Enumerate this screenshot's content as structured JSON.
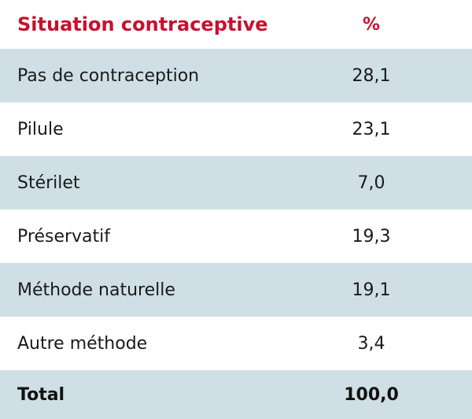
{
  "table": {
    "header": {
      "label": "Situation contraceptive",
      "value": "%"
    },
    "rows": [
      {
        "label": "Pas de contraception",
        "value": "28,1"
      },
      {
        "label": "Pilule",
        "value": "23,1"
      },
      {
        "label": "Stérilet",
        "value": "7,0"
      },
      {
        "label": "Préservatif",
        "value": "19,3"
      },
      {
        "label": "Méthode naturelle",
        "value": "19,1"
      },
      {
        "label": "Autre méthode",
        "value": "3,4"
      }
    ],
    "total": {
      "label": "Total",
      "value": "100,0"
    }
  },
  "colors": {
    "header_text": "#c8102e",
    "stripe": "#cfdfe5",
    "text": "#1a1a1a"
  }
}
